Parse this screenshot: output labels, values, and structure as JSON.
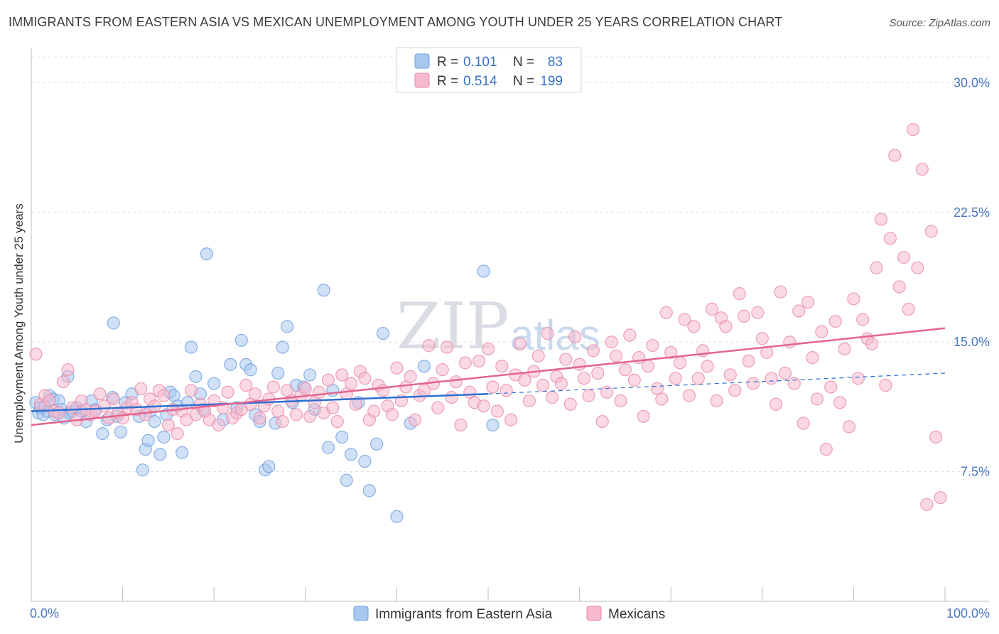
{
  "header": {
    "title": "IMMIGRANTS FROM EASTERN ASIA VS MEXICAN UNEMPLOYMENT AMONG YOUTH UNDER 25 YEARS CORRELATION CHART",
    "source": "Source: ZipAtlas.com"
  },
  "watermark": {
    "zip": "ZIP",
    "atlas": "atlas"
  },
  "legend": {
    "r_label": "R =",
    "n_label": "N =",
    "rows": [
      {
        "name": "Immigrants from Eastern Asia",
        "r": "0.101",
        "n": "83",
        "color": "#a9c8f0",
        "stroke": "#6f9fde"
      },
      {
        "name": "Mexicans",
        "r": "0.514",
        "n": "199",
        "color": "#f6b9cd",
        "stroke": "#e98aa8"
      }
    ]
  },
  "chart_data": {
    "type": "scatter",
    "title": "IMMIGRANTS FROM EASTERN ASIA VS MEXICAN UNEMPLOYMENT AMONG YOUTH UNDER 25 YEARS CORRELATION CHART",
    "xlabel": "",
    "ylabel": "Unemployment Among Youth under 25 years",
    "xlim": [
      0,
      100
    ],
    "ylim": [
      0,
      31.5
    ],
    "x_tick_labels": [
      "0.0%",
      "100.0%"
    ],
    "y_ticks": [
      7.5,
      15.0,
      22.5,
      30.0
    ],
    "y_tick_labels": [
      "7.5%",
      "15.0%",
      "22.5%",
      "30.0%"
    ],
    "grid": true,
    "legend_position": "top-center",
    "series": [
      {
        "name": "Immigrants from Eastern Asia",
        "color": "#6f9fde",
        "fill": "#a9c8f0",
        "trend": {
          "x": [
            0,
            50
          ],
          "y": [
            11.0,
            12.0
          ],
          "dashed_to": [
            100,
            13.2
          ]
        },
        "points": [
          [
            0.5,
            11.5
          ],
          [
            0.8,
            10.9
          ],
          [
            1.0,
            11.2
          ],
          [
            1.3,
            10.8
          ],
          [
            1.5,
            11.3
          ],
          [
            1.8,
            11.0
          ],
          [
            2.0,
            11.9
          ],
          [
            2.4,
            11.7
          ],
          [
            2.6,
            10.8
          ],
          [
            3.0,
            11.6
          ],
          [
            3.3,
            11.1
          ],
          [
            3.6,
            10.6
          ],
          [
            4.2,
            10.9
          ],
          [
            4.5,
            11.0
          ],
          [
            5.0,
            11.2
          ],
          [
            5.5,
            11.0
          ],
          [
            6.0,
            10.4
          ],
          [
            6.6,
            11.6
          ],
          [
            7.0,
            11.1
          ],
          [
            7.8,
            9.7
          ],
          [
            8.3,
            10.5
          ],
          [
            8.9,
            11.8
          ],
          [
            9.4,
            10.7
          ],
          [
            9.8,
            9.8
          ],
          [
            10.3,
            11.5
          ],
          [
            11.0,
            12.0
          ],
          [
            11.8,
            10.7
          ],
          [
            12.2,
            7.6
          ],
          [
            12.5,
            8.8
          ],
          [
            12.8,
            9.3
          ],
          [
            13.0,
            11.0
          ],
          [
            13.5,
            10.4
          ],
          [
            14.1,
            8.5
          ],
          [
            14.5,
            9.5
          ],
          [
            14.8,
            10.8
          ],
          [
            15.2,
            12.1
          ],
          [
            15.6,
            11.9
          ],
          [
            16.0,
            11.3
          ],
          [
            16.5,
            8.6
          ],
          [
            17.1,
            11.5
          ],
          [
            17.5,
            14.7
          ],
          [
            18.0,
            13.0
          ],
          [
            18.5,
            12.0
          ],
          [
            18.8,
            11.1
          ],
          [
            19.2,
            20.1
          ],
          [
            20.0,
            12.6
          ],
          [
            21.0,
            10.5
          ],
          [
            21.8,
            13.7
          ],
          [
            22.5,
            11.2
          ],
          [
            23.0,
            15.1
          ],
          [
            23.5,
            13.7
          ],
          [
            24.0,
            13.4
          ],
          [
            24.5,
            10.8
          ],
          [
            25.0,
            10.4
          ],
          [
            25.6,
            7.6
          ],
          [
            26.0,
            7.8
          ],
          [
            26.7,
            10.3
          ],
          [
            27.0,
            13.2
          ],
          [
            27.5,
            14.7
          ],
          [
            28.0,
            15.9
          ],
          [
            28.6,
            11.5
          ],
          [
            29.0,
            12.5
          ],
          [
            29.8,
            12.4
          ],
          [
            30.5,
            13.1
          ],
          [
            31.0,
            11.1
          ],
          [
            32.0,
            18.0
          ],
          [
            32.5,
            8.9
          ],
          [
            33.0,
            12.2
          ],
          [
            34.0,
            9.5
          ],
          [
            34.5,
            7.0
          ],
          [
            35.0,
            8.5
          ],
          [
            35.8,
            11.5
          ],
          [
            36.5,
            8.1
          ],
          [
            37.0,
            6.4
          ],
          [
            37.8,
            9.1
          ],
          [
            38.5,
            15.5
          ],
          [
            40.0,
            4.9
          ],
          [
            41.5,
            10.3
          ],
          [
            43.0,
            13.6
          ],
          [
            49.5,
            19.1
          ],
          [
            50.5,
            10.2
          ],
          [
            9.0,
            16.1
          ],
          [
            4.0,
            13.0
          ]
        ]
      },
      {
        "name": "Mexicans",
        "color": "#e98aa8",
        "fill": "#f6b9cd",
        "trend": {
          "x": [
            0,
            100
          ],
          "y": [
            10.2,
            15.8
          ]
        },
        "points": [
          [
            0.5,
            14.3
          ],
          [
            1.0,
            11.4
          ],
          [
            1.5,
            11.9
          ],
          [
            2.0,
            11.6
          ],
          [
            2.5,
            11.0
          ],
          [
            3.0,
            10.9
          ],
          [
            3.5,
            12.7
          ],
          [
            4.0,
            13.4
          ],
          [
            4.5,
            11.2
          ],
          [
            5.0,
            10.5
          ],
          [
            5.5,
            11.6
          ],
          [
            6.0,
            11.1
          ],
          [
            6.5,
            10.8
          ],
          [
            7.0,
            11.0
          ],
          [
            7.5,
            12.0
          ],
          [
            8.0,
            11.3
          ],
          [
            8.5,
            10.6
          ],
          [
            9.0,
            11.7
          ],
          [
            9.5,
            10.9
          ],
          [
            10.0,
            10.6
          ],
          [
            10.5,
            11.2
          ],
          [
            11.0,
            11.5
          ],
          [
            11.5,
            11.1
          ],
          [
            12.0,
            12.3
          ],
          [
            12.5,
            10.8
          ],
          [
            13.0,
            11.7
          ],
          [
            13.5,
            11.3
          ],
          [
            14.0,
            12.2
          ],
          [
            14.5,
            11.9
          ],
          [
            15.0,
            10.2
          ],
          [
            15.5,
            11.1
          ],
          [
            16.0,
            9.7
          ],
          [
            16.5,
            11.0
          ],
          [
            17.0,
            10.5
          ],
          [
            17.5,
            12.2
          ],
          [
            18.0,
            10.8
          ],
          [
            18.5,
            11.4
          ],
          [
            19.0,
            11.0
          ],
          [
            19.5,
            10.5
          ],
          [
            20.0,
            11.6
          ],
          [
            20.5,
            10.2
          ],
          [
            21.0,
            11.2
          ],
          [
            21.5,
            12.1
          ],
          [
            22.0,
            10.6
          ],
          [
            22.5,
            10.9
          ],
          [
            23.0,
            11.1
          ],
          [
            23.5,
            12.5
          ],
          [
            24.0,
            11.4
          ],
          [
            24.5,
            12.0
          ],
          [
            25.0,
            10.6
          ],
          [
            25.5,
            11.3
          ],
          [
            26.0,
            11.7
          ],
          [
            26.5,
            12.4
          ],
          [
            27.0,
            11.0
          ],
          [
            27.5,
            10.4
          ],
          [
            28.0,
            12.2
          ],
          [
            28.5,
            11.6
          ],
          [
            29.0,
            10.8
          ],
          [
            29.5,
            11.9
          ],
          [
            30.0,
            12.3
          ],
          [
            30.5,
            10.7
          ],
          [
            31.0,
            11.5
          ],
          [
            31.5,
            12.1
          ],
          [
            32.0,
            10.9
          ],
          [
            32.5,
            12.8
          ],
          [
            33.0,
            11.2
          ],
          [
            33.5,
            10.4
          ],
          [
            34.0,
            13.1
          ],
          [
            34.5,
            12.0
          ],
          [
            35.0,
            12.6
          ],
          [
            35.5,
            11.4
          ],
          [
            36.0,
            13.3
          ],
          [
            36.5,
            12.9
          ],
          [
            37.0,
            10.5
          ],
          [
            37.5,
            11.0
          ],
          [
            38.0,
            12.5
          ],
          [
            38.5,
            12.2
          ],
          [
            39.0,
            11.3
          ],
          [
            39.5,
            10.8
          ],
          [
            40.0,
            13.5
          ],
          [
            40.5,
            11.6
          ],
          [
            41.0,
            12.4
          ],
          [
            41.5,
            13.0
          ],
          [
            42.0,
            10.5
          ],
          [
            42.5,
            11.9
          ],
          [
            43.0,
            12.2
          ],
          [
            43.5,
            14.8
          ],
          [
            44.0,
            12.6
          ],
          [
            44.5,
            11.2
          ],
          [
            45.0,
            13.4
          ],
          [
            45.5,
            14.7
          ],
          [
            46.0,
            11.8
          ],
          [
            46.5,
            12.7
          ],
          [
            47.0,
            10.2
          ],
          [
            47.5,
            13.8
          ],
          [
            48.0,
            12.1
          ],
          [
            48.5,
            11.5
          ],
          [
            49.0,
            13.9
          ],
          [
            49.5,
            11.3
          ],
          [
            50.0,
            14.6
          ],
          [
            50.5,
            12.4
          ],
          [
            51.0,
            11.0
          ],
          [
            51.5,
            13.6
          ],
          [
            52.0,
            12.2
          ],
          [
            52.5,
            10.5
          ],
          [
            53.0,
            13.1
          ],
          [
            53.5,
            14.9
          ],
          [
            54.0,
            12.8
          ],
          [
            54.5,
            11.6
          ],
          [
            55.0,
            13.3
          ],
          [
            55.5,
            14.2
          ],
          [
            56.0,
            12.5
          ],
          [
            56.5,
            15.5
          ],
          [
            57.0,
            11.8
          ],
          [
            57.5,
            13.0
          ],
          [
            58.0,
            12.6
          ],
          [
            58.5,
            14.0
          ],
          [
            59.0,
            11.4
          ],
          [
            59.5,
            15.3
          ],
          [
            60.0,
            13.7
          ],
          [
            60.5,
            12.9
          ],
          [
            61.0,
            11.9
          ],
          [
            61.5,
            14.5
          ],
          [
            62.0,
            13.2
          ],
          [
            62.5,
            10.4
          ],
          [
            63.0,
            12.1
          ],
          [
            63.5,
            15.0
          ],
          [
            64.0,
            14.2
          ],
          [
            64.5,
            11.6
          ],
          [
            65.0,
            13.4
          ],
          [
            65.5,
            15.4
          ],
          [
            66.0,
            12.8
          ],
          [
            66.5,
            14.1
          ],
          [
            67.0,
            10.7
          ],
          [
            67.5,
            13.6
          ],
          [
            68.0,
            14.8
          ],
          [
            68.5,
            12.3
          ],
          [
            69.0,
            11.7
          ],
          [
            69.5,
            16.7
          ],
          [
            70.0,
            14.4
          ],
          [
            70.5,
            12.9
          ],
          [
            71.0,
            13.8
          ],
          [
            71.5,
            16.3
          ],
          [
            72.0,
            11.9
          ],
          [
            72.5,
            15.9
          ],
          [
            73.0,
            12.9
          ],
          [
            73.5,
            14.5
          ],
          [
            74.0,
            13.6
          ],
          [
            74.5,
            16.9
          ],
          [
            75.0,
            11.6
          ],
          [
            75.5,
            16.4
          ],
          [
            76.0,
            15.9
          ],
          [
            76.5,
            13.1
          ],
          [
            77.0,
            12.2
          ],
          [
            77.5,
            17.8
          ],
          [
            78.0,
            16.5
          ],
          [
            78.5,
            13.9
          ],
          [
            79.0,
            12.6
          ],
          [
            79.5,
            16.7
          ],
          [
            80.0,
            15.2
          ],
          [
            80.5,
            14.4
          ],
          [
            81.0,
            12.9
          ],
          [
            81.5,
            11.4
          ],
          [
            82.0,
            17.9
          ],
          [
            82.5,
            13.2
          ],
          [
            83.0,
            15.0
          ],
          [
            83.5,
            12.6
          ],
          [
            84.0,
            16.8
          ],
          [
            84.5,
            10.3
          ],
          [
            85.0,
            17.3
          ],
          [
            85.5,
            14.1
          ],
          [
            86.0,
            11.7
          ],
          [
            86.5,
            15.6
          ],
          [
            87.0,
            8.8
          ],
          [
            87.5,
            12.4
          ],
          [
            88.0,
            16.2
          ],
          [
            88.5,
            11.5
          ],
          [
            89.0,
            14.6
          ],
          [
            89.5,
            10.1
          ],
          [
            90.0,
            17.5
          ],
          [
            90.5,
            12.9
          ],
          [
            91.0,
            16.3
          ],
          [
            91.5,
            15.2
          ],
          [
            92.0,
            14.9
          ],
          [
            92.5,
            19.3
          ],
          [
            93.0,
            22.1
          ],
          [
            93.5,
            12.5
          ],
          [
            94.0,
            21.0
          ],
          [
            94.5,
            25.8
          ],
          [
            95.0,
            18.2
          ],
          [
            95.5,
            19.9
          ],
          [
            96.0,
            16.9
          ],
          [
            96.5,
            27.3
          ],
          [
            97.0,
            19.3
          ],
          [
            97.5,
            25.0
          ],
          [
            98.0,
            5.6
          ],
          [
            98.5,
            21.4
          ],
          [
            99.0,
            9.5
          ],
          [
            99.5,
            6.0
          ]
        ]
      }
    ]
  }
}
